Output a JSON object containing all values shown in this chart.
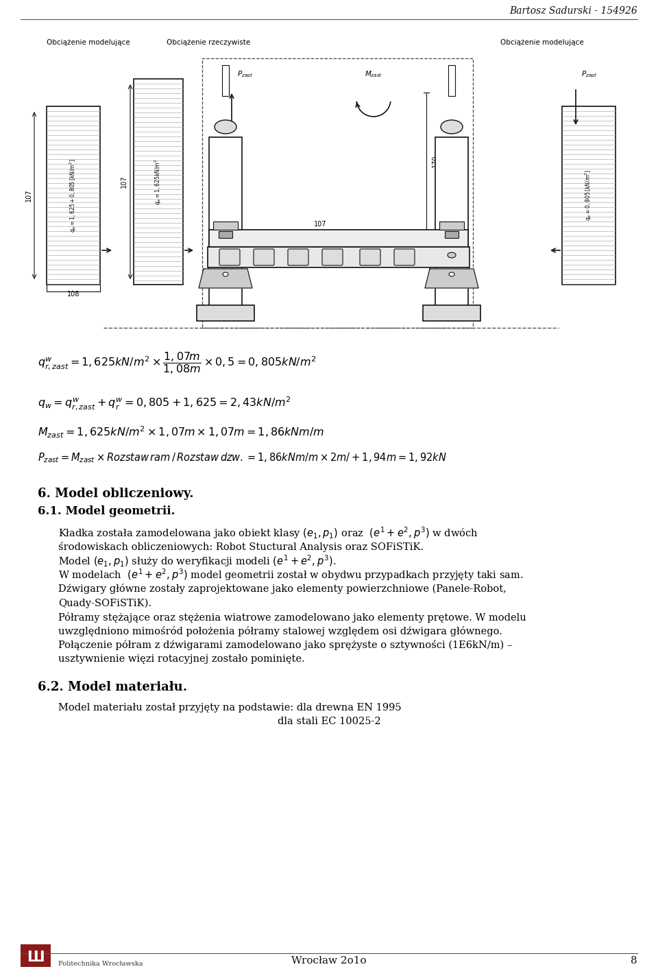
{
  "page_width": 9.6,
  "page_height": 14.13,
  "bg_color": "#ffffff",
  "header_text": "Bartosz Sadurski - 154926",
  "footer_center": "Wrocław 2o1o",
  "footer_page": "8",
  "footer_university": "Politechnika Wrocławska",
  "section_title_1": "6. Model obliczeniowy.",
  "section_subtitle_1": "6.1. Model geometrii.",
  "section_title_2": "6.2. Model materiału.",
  "label_left": "Obciążenie modelujące",
  "label_center": "Obciążenie rzeczywiste",
  "label_right": "Obciążenie modelujące",
  "dim_107_left": "107",
  "dim_108": "108",
  "dim_107_mid": "107",
  "dim_170": "170",
  "lbl_qw_left": "$q_w=1,625+0,805[kN/m^2]$",
  "lbl_qw_mid": "$q_w=1,625kN/m^2$",
  "lbl_qw_right": "$q_w=0,805[kN/m^2]$",
  "lbl_Pzast_left": "$P_{zast}$",
  "lbl_Mzast": "$M_{zast}$",
  "lbl_Pzast_right": "$P_{zast}$",
  "body_lines": [
    "Kładka została zamodelowana jako obiekt klasy $(e_1, p_1)$ oraz  $(e^1+e^2, p^3)$ w dwóch",
    "środowiskach obliczeniowych: Robot Stuctural Analysis oraz SOFiSTiK.",
    "Model $(e_1, p_1)$ służy do weryfikacji modeli $(e^1+e^2, p^3)$.",
    "W modelach  $(e^1+e^2, p^3)$ model geometrii został w obydwu przypadkach przyjęty taki sam.",
    "Dźwigary główne zostały zaprojektowane jako elementy powierzchniowe (Panele-Robot,",
    "Quady-SOFiSTiK).",
    "Półramy stężające oraz stężenia wiatrowe zamodelowano jako elementy prętowe. W modelu",
    "uwzględniono mimośród położenia półramy stalowej względem osi dźwigara głównego.",
    "Połączenie półram z dźwigarami zamodelowano jako sprężyste o sztywności (1E6kN/m) –",
    "usztywnienie więzi rotacyjnej zostało pominięte."
  ],
  "mat_line1": "Model materiału został przyjęty na podstawie: dla drewna EN 1995",
  "mat_line2": "dla stali EC 10025-2"
}
